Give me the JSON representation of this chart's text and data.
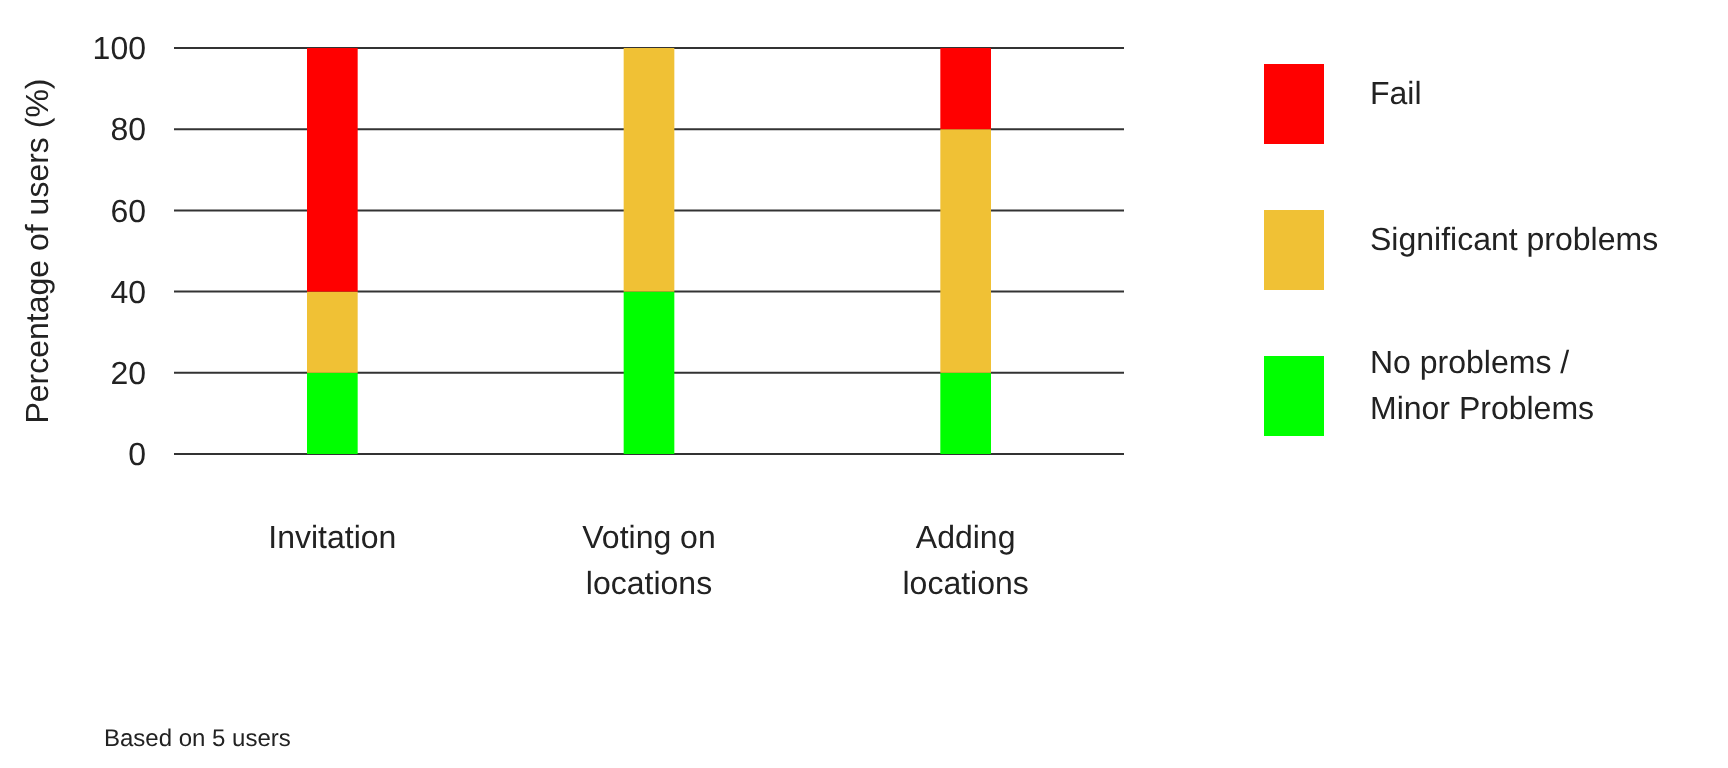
{
  "chart_data": {
    "type": "bar",
    "stacked": true,
    "ylabel": "Percentage of users (%)",
    "categories": [
      "Invitation",
      "Voting on locations",
      "Adding locations"
    ],
    "series": [
      {
        "name": "No problems / Minor Problems",
        "color": "#00ff00",
        "values": [
          20,
          40,
          20
        ]
      },
      {
        "name": "Significant problems",
        "color": "#f0c135",
        "values": [
          20,
          60,
          60
        ]
      },
      {
        "name": "Fail",
        "color": "#ff0000",
        "values": [
          60,
          0,
          20
        ]
      }
    ],
    "ylim": [
      0,
      100
    ],
    "yticks": [
      0,
      20,
      40,
      60,
      80,
      100
    ],
    "grid": "y",
    "legend": "right",
    "annotations": [
      "Based on 5 users"
    ]
  }
}
